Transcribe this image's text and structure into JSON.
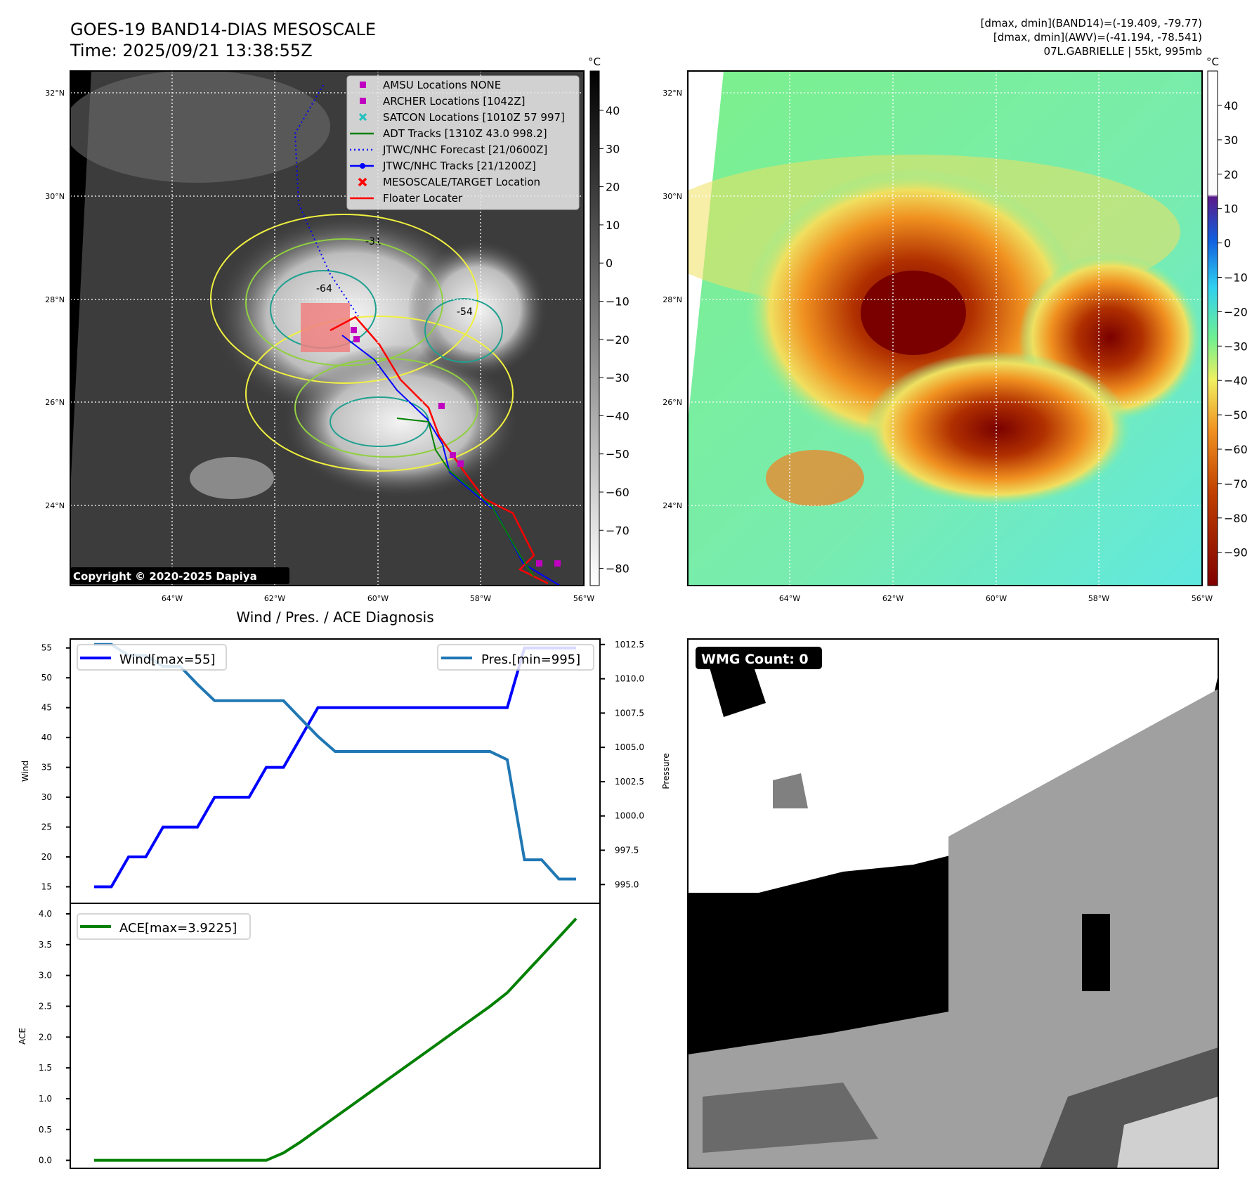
{
  "header": {
    "title": "GOES-19 BAND14-DIAS MESOSCALE",
    "time": "Time: 2025/09/21 13:38:55Z",
    "info_line1": "[dmax, dmin](BAND14)=(-19.409, -79.77)",
    "info_line2": "[dmax, dmin](AWV)=(-41.194, -78.541)",
    "info_line3": "07L.GABRIELLE | 55kt, 995mb"
  },
  "map": {
    "lat_labels": [
      "32°N",
      "30°N",
      "28°N",
      "26°N",
      "24°N"
    ],
    "lon_labels": [
      "64°W",
      "62°W",
      "60°W",
      "58°W",
      "56°W"
    ],
    "copyright": "Copyright © 2020-2025 Dapiya",
    "contour_labels": [
      "-31",
      "-54",
      "-64"
    ],
    "legend": [
      {
        "label": "AMSU Locations NONE",
        "color": "#c000c0"
      },
      {
        "label": "ARCHER Locations [1042Z]",
        "color": "#c000c0"
      },
      {
        "label": "SATCON Locations [1010Z 57 997]",
        "color": "#20c0c0"
      },
      {
        "label": "ADT Tracks [1310Z 43.0 998.2]",
        "color": "#008000"
      },
      {
        "label": "JTWC/NHC Forecast [21/0600Z]",
        "color": "#0000ff"
      },
      {
        "label": "JTWC/NHC Tracks [21/1200Z]",
        "color": "#0000ff"
      },
      {
        "label": "MESOSCALE/TARGET Location",
        "color": "#ff0000"
      },
      {
        "label": "Floater Locater",
        "color": "#ff0000"
      }
    ]
  },
  "colorbar_left": {
    "unit": "°C",
    "ticks": [
      "40",
      "30",
      "20",
      "10",
      "0",
      "−10",
      "−20",
      "−30",
      "−40",
      "−50",
      "−60",
      "−70",
      "−80"
    ]
  },
  "colorbar_right": {
    "unit": "°C",
    "ticks": [
      "40",
      "30",
      "20",
      "10",
      "0",
      "−10",
      "−20",
      "−30",
      "−40",
      "−50",
      "−60",
      "−70",
      "−80",
      "−90"
    ]
  },
  "wmg": {
    "label": "WMG Count: 0"
  },
  "chart_data": [
    {
      "type": "line",
      "title": "Wind / Pres. / ACE Diagnosis",
      "ylabel": "Wind",
      "y2label": "Pressure",
      "ylim": [
        14,
        56.5
      ],
      "y2lim": [
        994.4,
        1012.9
      ],
      "yticks": [
        "15",
        "20",
        "25",
        "30",
        "35",
        "40",
        "45",
        "50",
        "55"
      ],
      "y2ticks": [
        "995.0",
        "997.5",
        "1000.0",
        "1002.5",
        "1005.0",
        "1007.5",
        "1010.0",
        "1012.5"
      ],
      "x": [
        0,
        1,
        2,
        3,
        4,
        5,
        6,
        7,
        8,
        9,
        10,
        11,
        12,
        13,
        14,
        15,
        16,
        17,
        18,
        19,
        20,
        21,
        22,
        23,
        24,
        25,
        26,
        27,
        28
      ],
      "series": [
        {
          "name": "Wind[max=55]",
          "color": "#0000ff",
          "axis": "left",
          "values": [
            15,
            15,
            20,
            20,
            25,
            25,
            25,
            30,
            30,
            30,
            35,
            35,
            40,
            45,
            45,
            45,
            45,
            45,
            45,
            45,
            45,
            45,
            45,
            45,
            45,
            55,
            55,
            55,
            55
          ]
        },
        {
          "name": "Pres.[min=995]",
          "color": "#1f77b4",
          "axis": "right",
          "values": [
            1012.5,
            1012.5,
            1011.7,
            1011.7,
            1010.9,
            1010.9,
            1009.6,
            1008.4,
            1008.4,
            1008.4,
            1008.4,
            1008.4,
            1007.1,
            1005.8,
            1004.7,
            1004.7,
            1004.7,
            1004.7,
            1004.7,
            1004.7,
            1004.7,
            1004.7,
            1004.7,
            1004.7,
            1004.1,
            996.8,
            996.8,
            995.4,
            995.4
          ]
        }
      ]
    },
    {
      "type": "line",
      "ylabel": "ACE",
      "ylim": [
        -0.13,
        4.0
      ],
      "yticks": [
        "0.0",
        "0.5",
        "1.0",
        "1.5",
        "2.0",
        "2.5",
        "3.0",
        "3.5",
        "4.0"
      ],
      "x": [
        0,
        1,
        2,
        3,
        4,
        5,
        6,
        7,
        8,
        9,
        10,
        11,
        12,
        13,
        14,
        15,
        16,
        17,
        18,
        19,
        20,
        21,
        22,
        23,
        24,
        25,
        26,
        27,
        28
      ],
      "series": [
        {
          "name": "ACE[max=3.9225]",
          "color": "#008000",
          "values": [
            0,
            0,
            0,
            0,
            0,
            0,
            0,
            0,
            0,
            0,
            0,
            0.12,
            0.3,
            0.5,
            0.7,
            0.9,
            1.1,
            1.3,
            1.5,
            1.7,
            1.9,
            2.1,
            2.3,
            2.5,
            2.72,
            3.02,
            3.32,
            3.62,
            3.9225
          ]
        }
      ]
    }
  ]
}
